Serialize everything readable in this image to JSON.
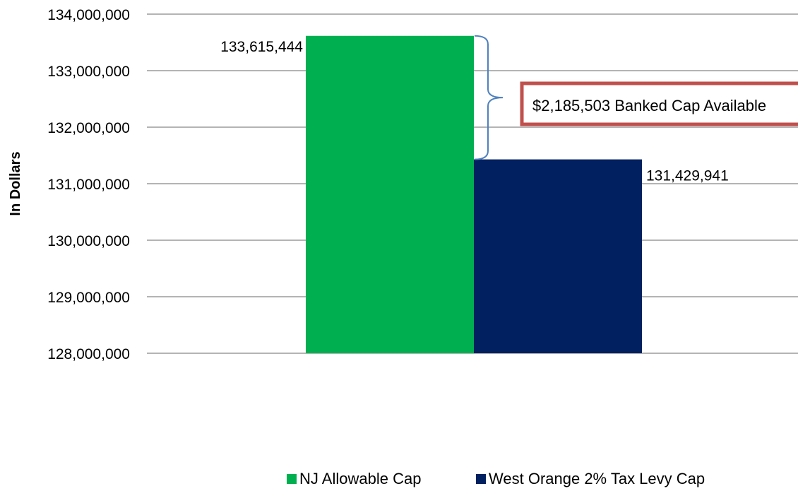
{
  "chart_data": {
    "type": "bar",
    "title": "",
    "xlabel": "",
    "ylabel": "In Dollars",
    "ylim": [
      128000000,
      134000000
    ],
    "yticks": [
      128000000,
      129000000,
      130000000,
      131000000,
      132000000,
      133000000,
      134000000
    ],
    "ytick_labels": [
      "128,000,000",
      "129,000,000",
      "130,000,000",
      "131,000,000",
      "132,000,000",
      "133,000,000",
      "134,000,000"
    ],
    "grid": true,
    "legend_position": "bottom",
    "series": [
      {
        "name": "NJ Allowable Cap",
        "values": [
          133615444
        ],
        "label": "133,615,444",
        "color": "#00b050"
      },
      {
        "name": "West Orange 2% Tax Levy Cap",
        "values": [
          131429941
        ],
        "label": "131,429,941",
        "color": "#002060"
      }
    ],
    "annotation": {
      "text": "$2,185,503 Banked Cap Available",
      "border_color": "#c0504d",
      "brace_color": "#4f81bd"
    }
  }
}
